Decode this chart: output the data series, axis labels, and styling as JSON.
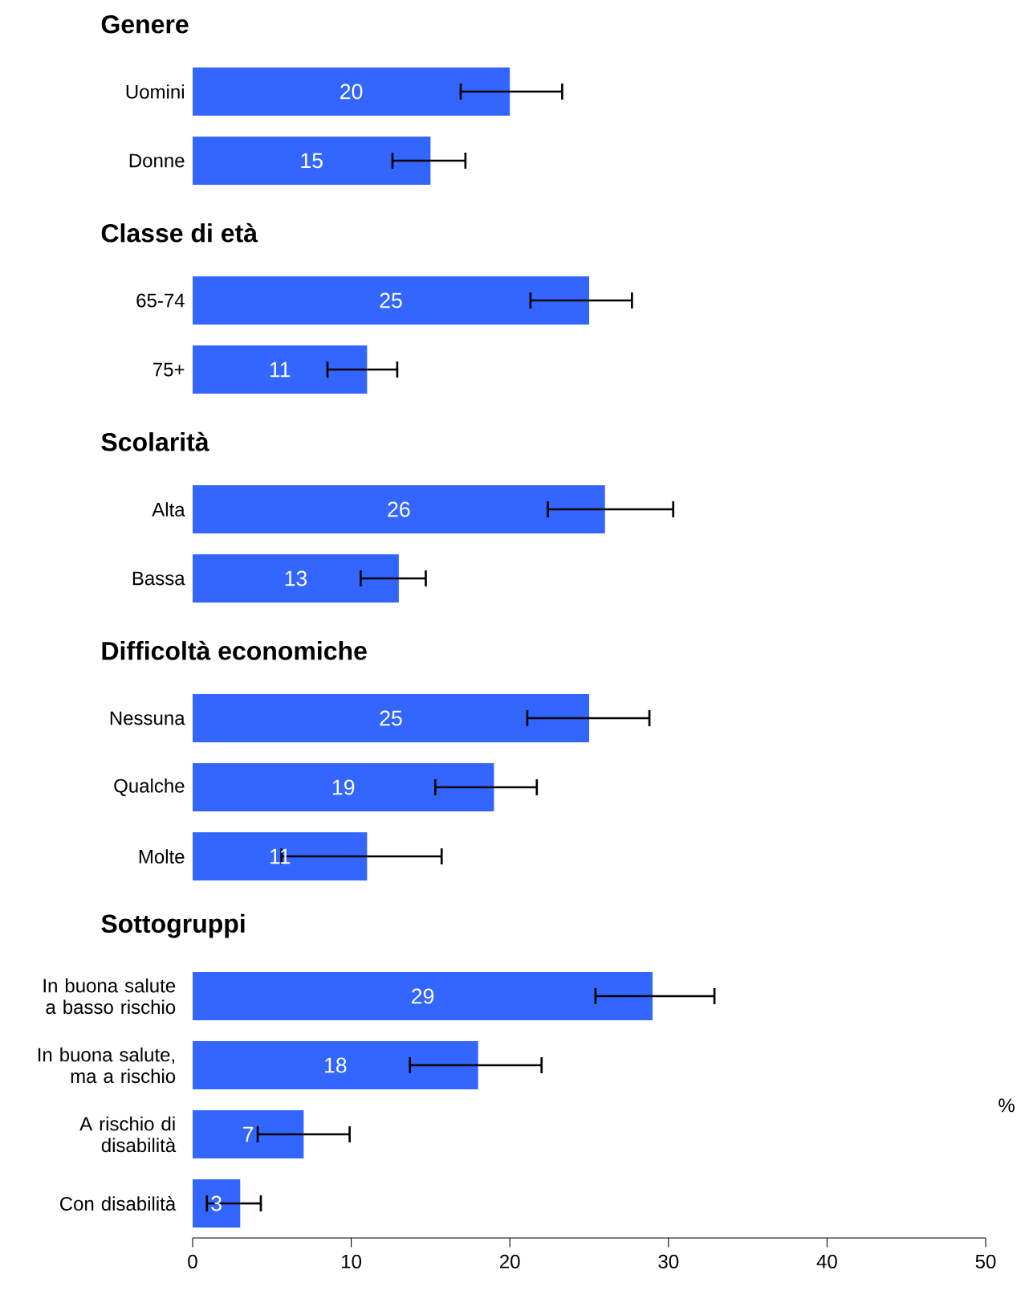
{
  "chart_data": [
    {
      "type": "bar",
      "orientation": "horizontal",
      "title": "Genere",
      "categories": [
        "Uomini",
        "Donne"
      ],
      "values": [
        20,
        15
      ],
      "errors": [
        [
          16.9,
          23.3
        ],
        [
          12.6,
          17.2
        ]
      ],
      "color": "#3366ff",
      "data_labels": true,
      "xlim": [
        0,
        50
      ],
      "tick_labels": "y"
    },
    {
      "type": "bar",
      "orientation": "horizontal",
      "title": "Classe di età",
      "categories": [
        "65-74",
        "75+"
      ],
      "values": [
        25,
        11
      ],
      "errors": [
        [
          21.3,
          27.7
        ],
        [
          8.5,
          12.9
        ]
      ],
      "color": "#3366ff",
      "data_labels": true,
      "xlim": [
        0,
        50
      ],
      "tick_labels": "y"
    },
    {
      "type": "bar",
      "orientation": "horizontal",
      "title": "Scolarità",
      "categories": [
        "Alta",
        "Bassa"
      ],
      "values": [
        26,
        13
      ],
      "errors": [
        [
          22.4,
          30.3
        ],
        [
          10.6,
          14.7
        ]
      ],
      "color": "#3366ff",
      "data_labels": true,
      "xlim": [
        0,
        50
      ],
      "tick_labels": "y"
    },
    {
      "type": "bar",
      "orientation": "horizontal",
      "title": "Difficoltà economiche",
      "categories": [
        "Nessuna",
        "Qualche",
        "Molte"
      ],
      "values": [
        25,
        19,
        11
      ],
      "errors": [
        [
          21.1,
          28.8
        ],
        [
          15.3,
          21.7
        ],
        [
          5.6,
          15.7
        ]
      ],
      "color": "#3366ff",
      "data_labels": true,
      "xlim": [
        0,
        50
      ],
      "tick_labels": "y"
    },
    {
      "type": "bar",
      "orientation": "horizontal",
      "title": "Sottogruppi",
      "categories": [
        "In buona salute a basso rischio",
        "In buona salute, ma a rischio",
        "A rischio di disabilità",
        "Con disabilità"
      ],
      "values": [
        29,
        18,
        7,
        3
      ],
      "errors": [
        [
          25.4,
          32.9
        ],
        [
          13.7,
          22.0
        ],
        [
          4.1,
          9.9
        ],
        [
          0.9,
          4.3
        ]
      ],
      "color": "#3366ff",
      "data_labels": true,
      "xlim": [
        0,
        50
      ],
      "xticks": [
        0,
        10,
        20,
        30,
        40,
        50
      ],
      "xlabel": "%"
    }
  ]
}
